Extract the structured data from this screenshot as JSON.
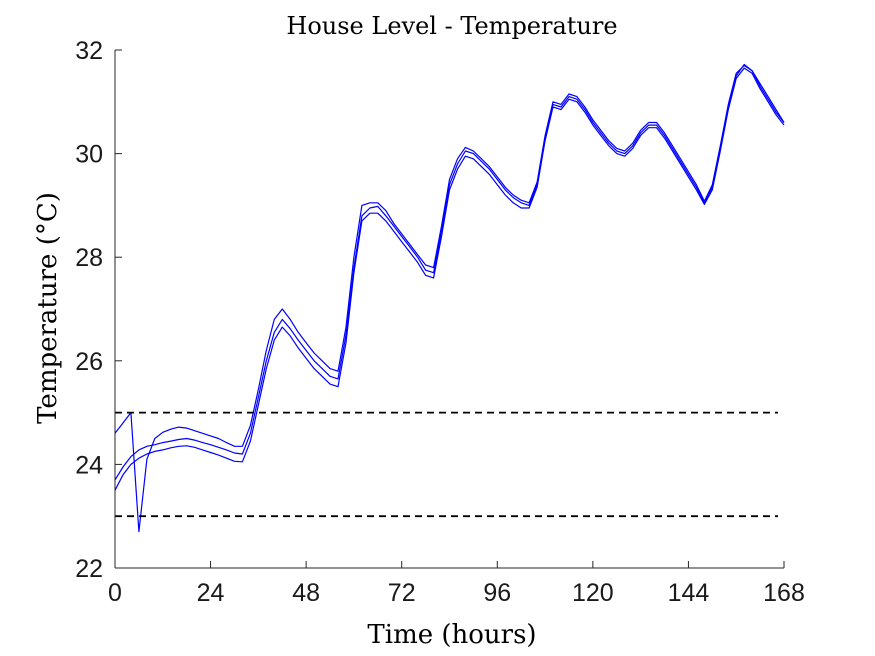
{
  "chart_data": {
    "type": "line",
    "title": "House Level - Temperature",
    "xlabel": "Time (hours)",
    "ylabel": "Temperature (°C)",
    "xlim": [
      0,
      168
    ],
    "ylim": [
      22,
      32
    ],
    "xticks": [
      0,
      24,
      48,
      72,
      96,
      120,
      144,
      168
    ],
    "yticks": [
      22,
      24,
      26,
      28,
      30,
      32
    ],
    "grid": false,
    "series_color": "#0000ff",
    "bound_color": "#000000",
    "series": [
      {
        "x": [
          0,
          2,
          4,
          6,
          8,
          10,
          12,
          14,
          16,
          18,
          20,
          22,
          24,
          26,
          28,
          30,
          32,
          34,
          36,
          38,
          40,
          42,
          44,
          46,
          48,
          50,
          52,
          54,
          56,
          58,
          60,
          62,
          64,
          66,
          68,
          70,
          72,
          74,
          76,
          78,
          80,
          82,
          84,
          86,
          88,
          90,
          92,
          94,
          96,
          98,
          100,
          102,
          104,
          106,
          108,
          110,
          112,
          114,
          116,
          118,
          120,
          122,
          124,
          126,
          128,
          130,
          132,
          134,
          136,
          138,
          140,
          142,
          144,
          146,
          148,
          150,
          152,
          154,
          156,
          158,
          160,
          162,
          164,
          166,
          168
        ],
        "values": [
          23.7,
          23.95,
          24.15,
          24.28,
          24.35,
          24.38,
          24.42,
          24.45,
          24.48,
          24.5,
          24.47,
          24.42,
          24.38,
          24.33,
          24.28,
          24.22,
          24.2,
          24.6,
          25.3,
          26.0,
          26.55,
          26.8,
          26.62,
          26.4,
          26.2,
          26.0,
          25.85,
          25.7,
          25.65,
          26.5,
          27.8,
          28.8,
          28.95,
          28.98,
          28.8,
          28.6,
          28.4,
          28.2,
          28.0,
          27.75,
          27.7,
          28.5,
          29.4,
          29.8,
          30.05,
          30.0,
          29.85,
          29.7,
          29.5,
          29.3,
          29.15,
          29.05,
          29.0,
          29.4,
          30.3,
          30.95,
          30.9,
          31.1,
          31.05,
          30.85,
          30.6,
          30.4,
          30.2,
          30.05,
          30.0,
          30.15,
          30.4,
          30.55,
          30.55,
          30.35,
          30.1,
          29.85,
          29.6,
          29.35,
          29.05,
          29.35,
          30.1,
          30.9,
          31.5,
          31.72,
          31.6,
          31.3,
          31.05,
          30.8,
          30.6
        ]
      },
      {
        "x": [
          0,
          2,
          4,
          6,
          8,
          10,
          12,
          14,
          16,
          18,
          20,
          22,
          24,
          26,
          28,
          30,
          32,
          34,
          36,
          38,
          40,
          42,
          44,
          46,
          48,
          50,
          52,
          54,
          56,
          58,
          60,
          62,
          64,
          66,
          68,
          70,
          72,
          74,
          76,
          78,
          80,
          82,
          84,
          86,
          88,
          90,
          92,
          94,
          96,
          98,
          100,
          102,
          104,
          106,
          108,
          110,
          112,
          114,
          116,
          118,
          120,
          122,
          124,
          126,
          128,
          130,
          132,
          134,
          136,
          138,
          140,
          142,
          144,
          146,
          148,
          150,
          152,
          154,
          156,
          158,
          160,
          162,
          164,
          166,
          168
        ],
        "values": [
          23.5,
          23.8,
          24.0,
          24.12,
          24.2,
          24.25,
          24.28,
          24.32,
          24.35,
          24.36,
          24.33,
          24.28,
          24.23,
          24.18,
          24.12,
          24.06,
          24.05,
          24.45,
          25.15,
          25.85,
          26.4,
          26.65,
          26.48,
          26.25,
          26.05,
          25.85,
          25.7,
          25.55,
          25.5,
          26.35,
          27.7,
          28.7,
          28.85,
          28.85,
          28.7,
          28.5,
          28.3,
          28.1,
          27.9,
          27.65,
          27.6,
          28.4,
          29.3,
          29.7,
          29.95,
          29.9,
          29.75,
          29.6,
          29.4,
          29.2,
          29.05,
          28.95,
          28.95,
          29.35,
          30.25,
          30.9,
          30.85,
          31.05,
          31.0,
          30.8,
          30.55,
          30.35,
          30.15,
          30.0,
          29.95,
          30.1,
          30.35,
          30.5,
          30.5,
          30.3,
          30.05,
          29.8,
          29.55,
          29.3,
          29.02,
          29.3,
          30.05,
          30.85,
          31.45,
          31.65,
          31.55,
          31.25,
          31.0,
          30.75,
          30.55
        ]
      },
      {
        "x": [
          0,
          2,
          4,
          6,
          8,
          10,
          12,
          14,
          16,
          18,
          20,
          22,
          24,
          26,
          28,
          30,
          32,
          34,
          36,
          38,
          40,
          42,
          44,
          46,
          48,
          50,
          52,
          54,
          56,
          58,
          60,
          62,
          64,
          66,
          68,
          70,
          72,
          74,
          76,
          78,
          80,
          82,
          84,
          86,
          88,
          90,
          92,
          94,
          96,
          98,
          100,
          102,
          104,
          106,
          108,
          110,
          112,
          114,
          116,
          118,
          120,
          122,
          124,
          126,
          128,
          130,
          132,
          134,
          136,
          138,
          140,
          142,
          144,
          146,
          148,
          150,
          152,
          154,
          156,
          158,
          160,
          162,
          164,
          166,
          168
        ],
        "values": [
          24.6,
          24.8,
          25.0,
          22.7,
          24.1,
          24.5,
          24.62,
          24.68,
          24.72,
          24.7,
          24.65,
          24.6,
          24.55,
          24.5,
          24.42,
          24.35,
          24.35,
          24.75,
          25.45,
          26.2,
          26.8,
          27.0,
          26.8,
          26.55,
          26.35,
          26.15,
          26.0,
          25.85,
          25.8,
          26.65,
          28.0,
          29.0,
          29.05,
          29.05,
          28.9,
          28.65,
          28.45,
          28.25,
          28.05,
          27.85,
          27.8,
          28.6,
          29.5,
          29.9,
          30.12,
          30.05,
          29.9,
          29.75,
          29.55,
          29.35,
          29.2,
          29.1,
          29.05,
          29.45,
          30.35,
          31.0,
          30.95,
          31.15,
          31.1,
          30.9,
          30.65,
          30.45,
          30.25,
          30.1,
          30.05,
          30.2,
          30.45,
          30.6,
          30.6,
          30.4,
          30.15,
          29.9,
          29.65,
          29.4,
          29.08,
          29.4,
          30.15,
          30.95,
          31.55,
          31.7,
          31.6,
          31.35,
          31.1,
          30.85,
          30.6
        ]
      }
    ],
    "reference_lines": [
      {
        "y": 25,
        "style": "dashed"
      },
      {
        "y": 23,
        "style": "dashed"
      }
    ]
  }
}
